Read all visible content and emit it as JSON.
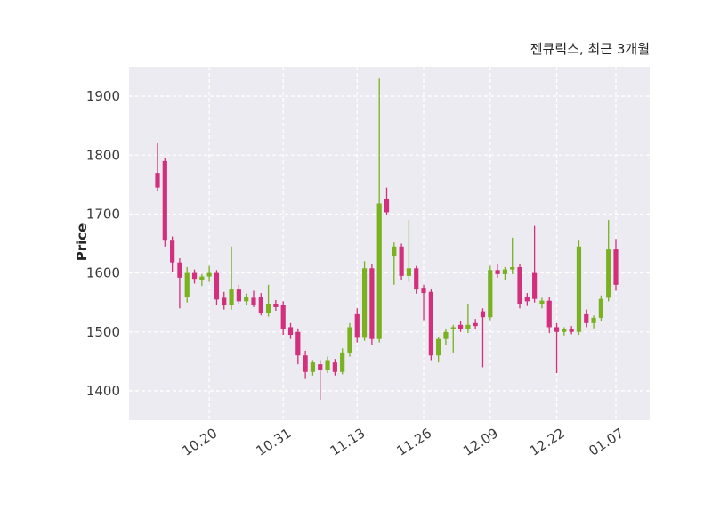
{
  "chart_data": {
    "type": "candlestick",
    "title": "젠큐릭스, 최근 3개월",
    "ylabel": "Price",
    "xlabel": "",
    "ylim": [
      1350,
      1950
    ],
    "y_ticks": [
      1400,
      1500,
      1600,
      1700,
      1800,
      1900
    ],
    "x_tick_labels": [
      "10.20",
      "10.31",
      "11.13",
      "11.26",
      "12.09",
      "12.22",
      "01.07"
    ],
    "x_tick_indices": [
      7,
      17,
      27,
      36,
      45,
      54,
      62
    ],
    "legend": "none",
    "grid": "white-dashed-on-gray",
    "colors": {
      "up": "#79b120",
      "down": "#d2307d",
      "plot_bg": "#ebebf1",
      "fig_bg": "#ffffff",
      "grid_line": "#ffffff",
      "tick_text": "#3a3a3a"
    },
    "ohlc_format": [
      "open",
      "high",
      "low",
      "close"
    ],
    "candles": [
      [
        1770,
        1820,
        1740,
        1745
      ],
      [
        1790,
        1795,
        1645,
        1655
      ],
      [
        1655,
        1662,
        1602,
        1618
      ],
      [
        1618,
        1625,
        1540,
        1592
      ],
      [
        1560,
        1610,
        1550,
        1600
      ],
      [
        1600,
        1606,
        1582,
        1590
      ],
      [
        1588,
        1598,
        1578,
        1594
      ],
      [
        1594,
        1612,
        1585,
        1600
      ],
      [
        1600,
        1605,
        1545,
        1555
      ],
      [
        1558,
        1568,
        1538,
        1545
      ],
      [
        1545,
        1645,
        1538,
        1572
      ],
      [
        1572,
        1580,
        1548,
        1552
      ],
      [
        1552,
        1565,
        1545,
        1560
      ],
      [
        1558,
        1570,
        1542,
        1546
      ],
      [
        1560,
        1566,
        1528,
        1532
      ],
      [
        1532,
        1580,
        1526,
        1548
      ],
      [
        1548,
        1554,
        1536,
        1542
      ],
      [
        1545,
        1552,
        1495,
        1505
      ],
      [
        1508,
        1515,
        1488,
        1495
      ],
      [
        1500,
        1506,
        1445,
        1460
      ],
      [
        1460,
        1468,
        1420,
        1432
      ],
      [
        1432,
        1452,
        1426,
        1448
      ],
      [
        1445,
        1452,
        1385,
        1435
      ],
      [
        1435,
        1458,
        1430,
        1452
      ],
      [
        1448,
        1454,
        1426,
        1432
      ],
      [
        1432,
        1472,
        1428,
        1465
      ],
      [
        1465,
        1515,
        1458,
        1508
      ],
      [
        1530,
        1540,
        1482,
        1490
      ],
      [
        1490,
        1620,
        1485,
        1608
      ],
      [
        1608,
        1615,
        1478,
        1488
      ],
      [
        1488,
        1930,
        1482,
        1718
      ],
      [
        1725,
        1745,
        1698,
        1703
      ],
      [
        1628,
        1652,
        1580,
        1645
      ],
      [
        1645,
        1650,
        1588,
        1595
      ],
      [
        1595,
        1690,
        1585,
        1608
      ],
      [
        1608,
        1612,
        1565,
        1572
      ],
      [
        1575,
        1580,
        1520,
        1566
      ],
      [
        1568,
        1572,
        1452,
        1460
      ],
      [
        1460,
        1492,
        1448,
        1488
      ],
      [
        1488,
        1505,
        1478,
        1500
      ],
      [
        1505,
        1512,
        1465,
        1508
      ],
      [
        1512,
        1518,
        1500,
        1505
      ],
      [
        1505,
        1548,
        1498,
        1512
      ],
      [
        1515,
        1522,
        1505,
        1510
      ],
      [
        1535,
        1540,
        1440,
        1525
      ],
      [
        1525,
        1612,
        1520,
        1605
      ],
      [
        1605,
        1615,
        1592,
        1598
      ],
      [
        1598,
        1610,
        1588,
        1606
      ],
      [
        1606,
        1660,
        1598,
        1610
      ],
      [
        1610,
        1616,
        1540,
        1548
      ],
      [
        1560,
        1566,
        1544,
        1552
      ],
      [
        1600,
        1680,
        1550,
        1556
      ],
      [
        1548,
        1558,
        1540,
        1553
      ],
      [
        1553,
        1560,
        1498,
        1508
      ],
      [
        1508,
        1515,
        1430,
        1500
      ],
      [
        1500,
        1508,
        1494,
        1505
      ],
      [
        1505,
        1510,
        1496,
        1500
      ],
      [
        1500,
        1655,
        1495,
        1645
      ],
      [
        1530,
        1538,
        1508,
        1515
      ],
      [
        1515,
        1528,
        1506,
        1524
      ],
      [
        1524,
        1562,
        1518,
        1556
      ],
      [
        1558,
        1690,
        1552,
        1640
      ],
      [
        1640,
        1658,
        1570,
        1580
      ]
    ]
  }
}
